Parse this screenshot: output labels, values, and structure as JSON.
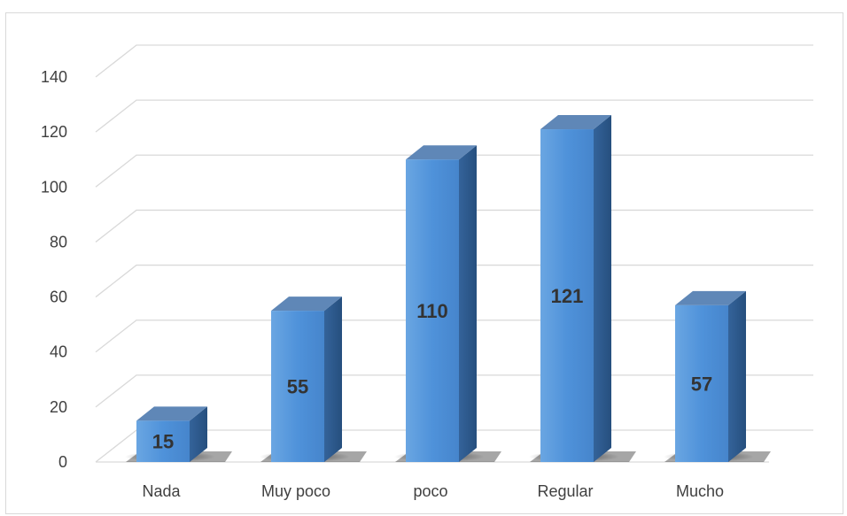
{
  "chart_data": {
    "type": "bar",
    "categories": [
      "Nada",
      "Muy poco",
      "poco",
      "Regular",
      "Mucho"
    ],
    "values": [
      15,
      55,
      110,
      121,
      57
    ],
    "ylim": [
      0,
      140
    ],
    "yticks": [
      0,
      20,
      40,
      60,
      80,
      100,
      120,
      140
    ],
    "grid": true,
    "three_d": true,
    "data_labels": true
  },
  "colors": {
    "bar_front": "#4f8fd6",
    "bar_top": "#5f87b7",
    "bar_side": "#2e5b8f",
    "grid": "#d9d9d9",
    "text": "#404040"
  }
}
